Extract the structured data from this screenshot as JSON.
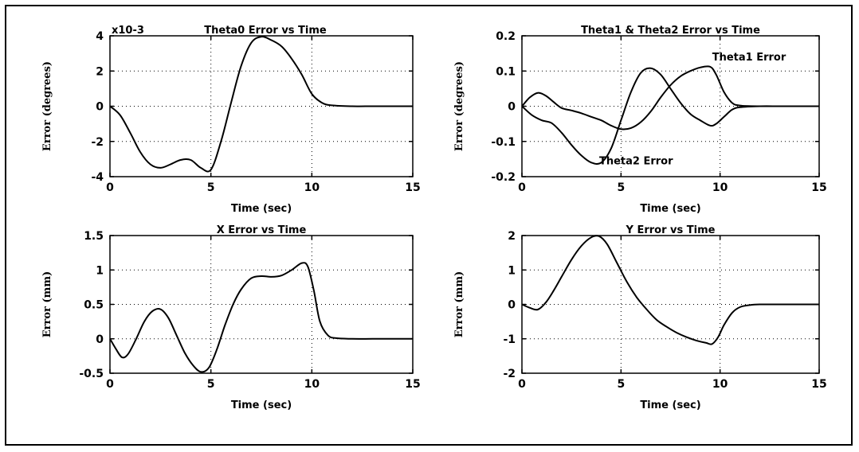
{
  "chart_data": [
    {
      "type": "line",
      "title": "Theta0 Error vs Time",
      "exponent_label": "x10-3",
      "xlabel": "Time (sec)",
      "ylabel": "Error (degrees)",
      "xlim": [
        0,
        15
      ],
      "ylim": [
        -4,
        4
      ],
      "xticks": [
        0,
        5,
        10,
        15
      ],
      "yticks": [
        -4,
        -2,
        0,
        2,
        4
      ],
      "grid": true,
      "series": [
        {
          "x": [
            0,
            0.5,
            1,
            1.5,
            2,
            2.5,
            3,
            3.5,
            4,
            4.5,
            5,
            5.5,
            6,
            6.5,
            7,
            7.5,
            8,
            8.5,
            9,
            9.5,
            10,
            10.5,
            11,
            12,
            13,
            14,
            15
          ],
          "values": [
            0,
            -0.5,
            -1.5,
            -2.6,
            -3.3,
            -3.5,
            -3.3,
            -3.05,
            -3.05,
            -3.5,
            -3.6,
            -2.0,
            0.2,
            2.3,
            3.6,
            3.95,
            3.75,
            3.4,
            2.7,
            1.8,
            0.7,
            0.2,
            0.05,
            0,
            0,
            0,
            0
          ]
        }
      ]
    },
    {
      "type": "line",
      "title": "Theta1 & Theta2 Error vs Time",
      "xlabel": "Time (sec)",
      "ylabel": "Error (degrees)",
      "xlim": [
        0,
        15
      ],
      "ylim": [
        -0.2,
        0.2
      ],
      "xticks": [
        0,
        5,
        10,
        15
      ],
      "yticks": [
        -0.2,
        -0.1,
        0,
        0.1,
        0.2
      ],
      "grid": true,
      "annotations": [
        {
          "text": "Theta1 Error",
          "x": 9.6,
          "y": 0.13
        },
        {
          "text": "Theta2 Error",
          "x": 3.9,
          "y": -0.165
        }
      ],
      "series": [
        {
          "name": "Theta1 Error",
          "x": [
            0,
            0.4,
            0.8,
            1.2,
            1.6,
            2,
            2.5,
            3,
            3.5,
            4,
            4.5,
            5,
            5.5,
            6,
            6.5,
            7,
            7.5,
            8,
            8.5,
            9,
            9.5,
            9.8,
            10.2,
            10.6,
            11,
            12,
            13,
            14,
            15
          ],
          "values": [
            0,
            0.025,
            0.038,
            0.03,
            0.012,
            -0.005,
            -0.012,
            -0.02,
            -0.03,
            -0.04,
            -0.055,
            -0.065,
            -0.062,
            -0.045,
            -0.015,
            0.025,
            0.06,
            0.085,
            0.1,
            0.11,
            0.112,
            0.09,
            0.04,
            0.01,
            0.002,
            0,
            0,
            0,
            0
          ]
        },
        {
          "name": "Theta2 Error",
          "x": [
            0,
            0.5,
            1,
            1.5,
            2,
            2.5,
            3,
            3.5,
            4,
            4.5,
            5,
            5.5,
            6,
            6.5,
            7,
            7.5,
            8,
            8.5,
            9,
            9.5,
            9.8,
            10.2,
            10.6,
            11,
            12,
            13,
            14,
            15
          ],
          "values": [
            0,
            -0.025,
            -0.04,
            -0.048,
            -0.075,
            -0.11,
            -0.14,
            -0.16,
            -0.16,
            -0.12,
            -0.04,
            0.04,
            0.095,
            0.108,
            0.09,
            0.05,
            0.01,
            -0.022,
            -0.04,
            -0.055,
            -0.05,
            -0.03,
            -0.01,
            -0.003,
            0,
            0,
            0,
            0
          ]
        }
      ]
    },
    {
      "type": "line",
      "title": "X Error vs Time",
      "xlabel": "Time (sec)",
      "ylabel": "Error (mm)",
      "xlim": [
        0,
        15
      ],
      "ylim": [
        -0.5,
        1.5
      ],
      "xticks": [
        0,
        5,
        10,
        15
      ],
      "yticks": [
        -0.5,
        0,
        0.5,
        1,
        1.5
      ],
      "grid": true,
      "series": [
        {
          "x": [
            0,
            0.3,
            0.6,
            0.9,
            1.3,
            1.7,
            2.1,
            2.5,
            2.9,
            3.3,
            3.7,
            4.1,
            4.5,
            4.9,
            5.3,
            5.7,
            6.1,
            6.5,
            7,
            7.5,
            8,
            8.5,
            9,
            9.5,
            9.8,
            10.1,
            10.4,
            10.8,
            11.2,
            12,
            13,
            14,
            15
          ],
          "values": [
            0,
            -0.15,
            -0.27,
            -0.22,
            0.0,
            0.25,
            0.4,
            0.43,
            0.3,
            0.05,
            -0.2,
            -0.38,
            -0.48,
            -0.42,
            -0.15,
            0.2,
            0.5,
            0.72,
            0.88,
            0.91,
            0.9,
            0.92,
            1.0,
            1.1,
            1.05,
            0.7,
            0.25,
            0.05,
            0.01,
            0,
            0,
            0,
            0
          ]
        }
      ]
    },
    {
      "type": "line",
      "title": "Y Error vs Time",
      "xlabel": "Time (sec)",
      "ylabel": "Error (mm)",
      "xlim": [
        0,
        15
      ],
      "ylim": [
        -2,
        2
      ],
      "xticks": [
        0,
        5,
        10,
        15
      ],
      "yticks": [
        -2,
        -1,
        0,
        1,
        2
      ],
      "grid": true,
      "series": [
        {
          "x": [
            0,
            0.4,
            0.8,
            1.2,
            1.6,
            2,
            2.5,
            3,
            3.5,
            3.9,
            4.3,
            4.8,
            5.3,
            5.8,
            6.3,
            6.8,
            7.3,
            7.8,
            8.3,
            8.8,
            9.3,
            9.6,
            9.9,
            10.2,
            10.6,
            11,
            11.5,
            12,
            13,
            14,
            15
          ],
          "values": [
            0,
            -0.1,
            -0.15,
            0.05,
            0.4,
            0.8,
            1.3,
            1.7,
            1.95,
            1.98,
            1.75,
            1.2,
            0.65,
            0.2,
            -0.15,
            -0.45,
            -0.65,
            -0.82,
            -0.95,
            -1.05,
            -1.12,
            -1.15,
            -0.95,
            -0.6,
            -0.25,
            -0.08,
            -0.02,
            0,
            0,
            0,
            0
          ]
        }
      ]
    }
  ]
}
